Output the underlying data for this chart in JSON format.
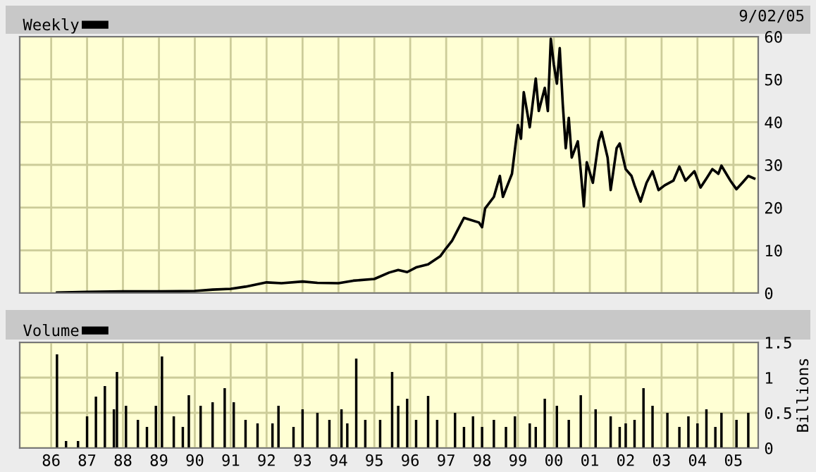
{
  "chart_data": [
    {
      "type": "line",
      "legend": "top left",
      "grid": true,
      "tick_labels": "y",
      "marker": "none",
      "line_style": "solid",
      "annotations": [
        "9/02/05"
      ],
      "xlim": [
        "1985-02-15",
        "2005-09-10"
      ],
      "ylim": [
        0,
        60
      ],
      "yticks": [
        0,
        10,
        20,
        30,
        40,
        50,
        60
      ],
      "xticks": [
        {
          "value": "1986-01",
          "label": null
        },
        {
          "value": "1987-01",
          "label": null
        },
        {
          "value": "1988-01",
          "label": null
        },
        {
          "value": "1989-01",
          "label": null
        },
        {
          "value": "1990-01",
          "label": null
        },
        {
          "value": "1991-01",
          "label": null
        },
        {
          "value": "1992-01",
          "label": null
        },
        {
          "value": "1993-01",
          "label": null
        },
        {
          "value": "1994-01",
          "label": null
        },
        {
          "value": "1995-01",
          "label": null
        },
        {
          "value": "1996-01",
          "label": null
        },
        {
          "value": "1997-01",
          "label": null
        },
        {
          "value": "1998-01",
          "label": null
        },
        {
          "value": "1999-01",
          "label": null
        },
        {
          "value": "2000-01",
          "label": null
        },
        {
          "value": "2001-01",
          "label": null
        },
        {
          "value": "2002-01",
          "label": null
        },
        {
          "value": "2003-01",
          "label": null
        },
        {
          "value": "2004-01",
          "label": null
        },
        {
          "value": "2005-01",
          "label": null
        }
      ],
      "series": [
        {
          "name": "Weekly",
          "color": "#000000",
          "x": [
            "1986-03",
            "1987-01",
            "1988-01",
            "1989-01",
            "1990-01",
            "1990-07",
            "1991-01",
            "1991-06",
            "1992-01",
            "1992-06",
            "1993-01",
            "1993-06",
            "1994-01",
            "1994-06",
            "1995-01",
            "1995-06",
            "1995-09",
            "1995-12",
            "1996-03",
            "1996-07",
            "1996-11",
            "1997-01",
            "1997-03",
            "1997-05",
            "1997-07",
            "1997-12",
            "1998-01",
            "1998-02",
            "1998-05",
            "1998-07",
            "1998-08",
            "1998-11",
            "1999-01",
            "1999-02",
            "1999-03",
            "1999-05",
            "1999-07",
            "1999-08",
            "1999-10",
            "1999-11",
            "1999-12",
            "2000-01",
            "2000-02",
            "2000-03",
            "2000-04",
            "2000-05",
            "2000-06",
            "2000-07",
            "2000-09",
            "2000-10",
            "2000-11",
            "2000-12",
            "2001-02",
            "2001-04",
            "2001-05",
            "2001-07",
            "2001-08",
            "2001-10",
            "2001-11",
            "2002-01",
            "2002-03",
            "2002-04",
            "2002-06",
            "2002-08",
            "2002-10",
            "2002-12",
            "2003-02",
            "2003-05",
            "2003-07",
            "2003-09",
            "2003-12",
            "2004-02",
            "2004-04",
            "2004-06",
            "2004-08",
            "2004-09",
            "2004-12",
            "2005-02",
            "2005-04",
            "2005-06",
            "2005-08"
          ],
          "values": [
            0.1,
            0.3,
            0.4,
            0.4,
            0.5,
            0.8,
            1.0,
            1.5,
            2.5,
            2.3,
            2.7,
            2.4,
            2.3,
            2.9,
            3.3,
            4.8,
            5.4,
            4.9,
            6.0,
            6.7,
            8.6,
            10.5,
            12.2,
            14.9,
            17.6,
            16.5,
            15.4,
            19.8,
            22.5,
            27.4,
            22.5,
            27.9,
            39.3,
            36.1,
            47,
            38.8,
            50.2,
            42.6,
            48,
            42.6,
            59.5,
            53.5,
            49,
            57.3,
            44.2,
            33.9,
            41,
            31.7,
            35.5,
            28.5,
            20.3,
            30.6,
            25.8,
            35.5,
            37.7,
            31.7,
            24.1,
            33.9,
            35,
            29,
            27.4,
            25.2,
            21.4,
            25.8,
            28.5,
            24.1,
            25.2,
            26.3,
            29.6,
            26.3,
            28.5,
            24.7,
            26.8,
            29,
            27.9,
            29.8,
            26.3,
            24.3,
            25.8,
            27.4,
            26.8
          ]
        }
      ]
    },
    {
      "type": "bar",
      "legend": "top left",
      "grid": true,
      "ylabel": "Billions",
      "xlim": [
        "1985-02-15",
        "2005-09-10"
      ],
      "ylim": [
        0,
        1.5
      ],
      "yticks": [
        0,
        0.5,
        1,
        1.5
      ],
      "xticks": [
        {
          "value": "1986-01",
          "label": "86"
        },
        {
          "value": "1987-01",
          "label": "87"
        },
        {
          "value": "1988-01",
          "label": "88"
        },
        {
          "value": "1989-01",
          "label": "89"
        },
        {
          "value": "1990-01",
          "label": "90"
        },
        {
          "value": "1991-01",
          "label": "91"
        },
        {
          "value": "1992-01",
          "label": "92"
        },
        {
          "value": "1993-01",
          "label": "93"
        },
        {
          "value": "1994-01",
          "label": "94"
        },
        {
          "value": "1995-01",
          "label": "95"
        },
        {
          "value": "1996-01",
          "label": "96"
        },
        {
          "value": "1997-01",
          "label": "97"
        },
        {
          "value": "1998-01",
          "label": "98"
        },
        {
          "value": "1999-01",
          "label": "99"
        },
        {
          "value": "2000-01",
          "label": "00"
        },
        {
          "value": "2001-01",
          "label": "01"
        },
        {
          "value": "2002-01",
          "label": "02"
        },
        {
          "value": "2003-01",
          "label": "03"
        },
        {
          "value": "2004-01",
          "label": "04"
        },
        {
          "value": "2005-01",
          "label": "05"
        }
      ],
      "series": [
        {
          "name": "Volume",
          "color": "#000000",
          "x": [
            "1986-03",
            "1986-06",
            "1986-10",
            "1987-01",
            "1987-04",
            "1987-07",
            "1987-10",
            "1987-11",
            "1988-02",
            "1988-06",
            "1988-09",
            "1988-12",
            "1989-02",
            "1989-06",
            "1989-09",
            "1989-11",
            "1990-03",
            "1990-07",
            "1990-11",
            "1991-02",
            "1991-06",
            "1991-10",
            "1992-03",
            "1992-05",
            "1992-10",
            "1993-01",
            "1993-06",
            "1993-10",
            "1994-02",
            "1994-04",
            "1994-07",
            "1994-10",
            "1995-03",
            "1995-07",
            "1995-09",
            "1995-12",
            "1996-03",
            "1996-07",
            "1996-10",
            "1997-04",
            "1997-07",
            "1997-10",
            "1998-01",
            "1998-05",
            "1998-09",
            "1998-12",
            "1999-05",
            "1999-07",
            "1999-10",
            "2000-02",
            "2000-06",
            "2000-10",
            "2001-03",
            "2001-08",
            "2001-11",
            "2002-01",
            "2002-04",
            "2002-07",
            "2002-10",
            "2003-03",
            "2003-07",
            "2003-10",
            "2004-01",
            "2004-04",
            "2004-07",
            "2004-09",
            "2005-02",
            "2005-06"
          ],
          "values": [
            1.33,
            0.1,
            0.1,
            0.45,
            0.73,
            0.88,
            0.55,
            1.08,
            0.6,
            0.4,
            0.3,
            0.6,
            1.3,
            0.45,
            0.3,
            0.75,
            0.6,
            0.65,
            0.85,
            0.65,
            0.4,
            0.35,
            0.35,
            0.6,
            0.3,
            0.55,
            0.5,
            0.4,
            0.55,
            0.35,
            1.27,
            0.4,
            0.4,
            1.08,
            0.6,
            0.7,
            0.4,
            0.74,
            0.4,
            0.5,
            0.3,
            0.45,
            0.3,
            0.4,
            0.3,
            0.45,
            0.35,
            0.3,
            0.7,
            0.6,
            0.4,
            0.75,
            0.55,
            0.45,
            0.3,
            0.35,
            0.4,
            0.85,
            0.6,
            0.5,
            0.3,
            0.45,
            0.35,
            0.55,
            0.3,
            0.5,
            0.4,
            0.5
          ]
        }
      ]
    }
  ]
}
